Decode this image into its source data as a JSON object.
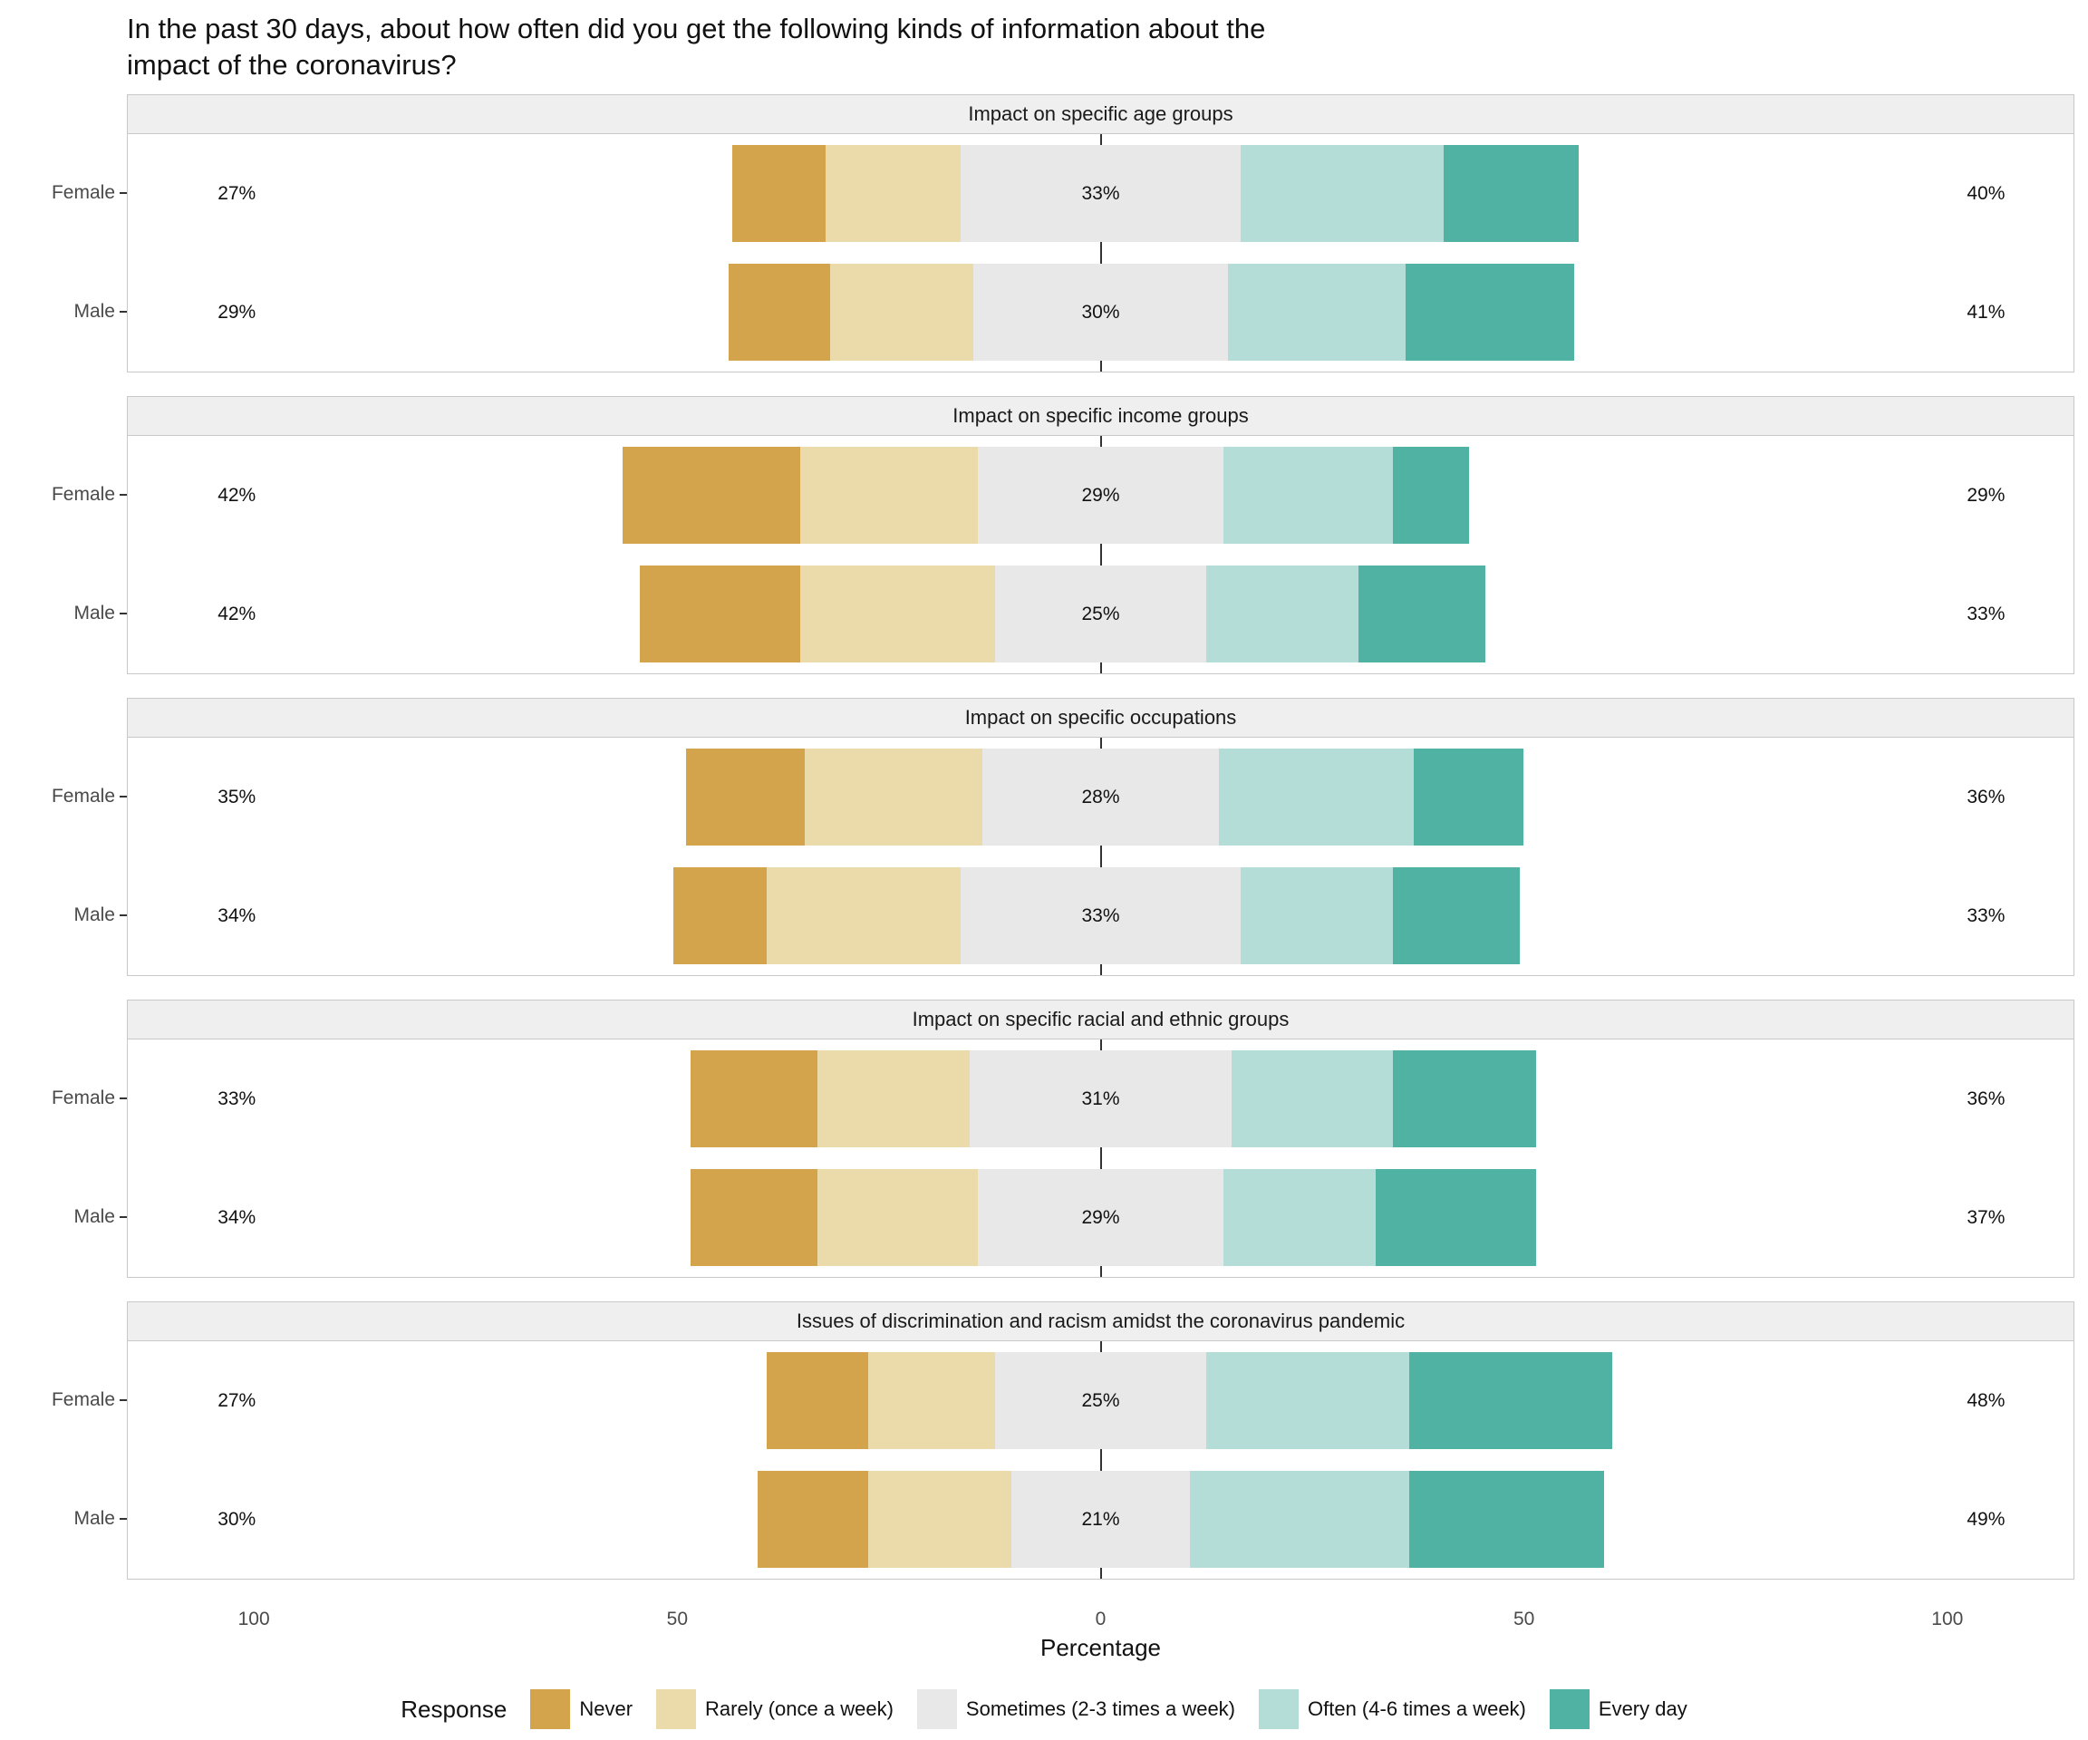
{
  "chart_data": {
    "type": "bar",
    "variant": "diverging-stacked-likert",
    "title": "In the past 30 days, about how often did you get the following kinds of information about the\nimpact of the coronavirus?",
    "xlabel": "Percentage",
    "xlim": [
      -115,
      115
    ],
    "x_ticks": [
      -100,
      -50,
      0,
      50,
      100
    ],
    "x_tick_labels": [
      "100",
      "50",
      "0",
      "50",
      "100"
    ],
    "legend_title": "Response",
    "legend_position": "bottom",
    "grid": false,
    "categories": [
      {
        "key": "never",
        "label": "Never",
        "color": "#d4a44c"
      },
      {
        "key": "rarely",
        "label": "Rarely (once a week)",
        "color": "#ecdbaa"
      },
      {
        "key": "sometimes",
        "label": "Sometimes (2-3 times a week)",
        "color": "#e8e8e8"
      },
      {
        "key": "often",
        "label": "Often (4-6 times a week)",
        "color": "#b3ddd6"
      },
      {
        "key": "every_day",
        "label": "Every day",
        "color": "#4fb2a2"
      }
    ],
    "panels": [
      {
        "title": "Impact on specific age groups",
        "rows": [
          {
            "group": "Female",
            "left_label": "27%",
            "mid_label": "33%",
            "right_label": "40%",
            "segments": {
              "never": 11,
              "rarely": 16,
              "sometimes": 33,
              "often": 24,
              "every_day": 16
            }
          },
          {
            "group": "Male",
            "left_label": "29%",
            "mid_label": "30%",
            "right_label": "41%",
            "segments": {
              "never": 12,
              "rarely": 17,
              "sometimes": 30,
              "often": 21,
              "every_day": 20
            }
          }
        ]
      },
      {
        "title": "Impact on specific income groups",
        "rows": [
          {
            "group": "Female",
            "left_label": "42%",
            "mid_label": "29%",
            "right_label": "29%",
            "segments": {
              "never": 21,
              "rarely": 21,
              "sometimes": 29,
              "often": 20,
              "every_day": 9
            }
          },
          {
            "group": "Male",
            "left_label": "42%",
            "mid_label": "25%",
            "right_label": "33%",
            "segments": {
              "never": 19,
              "rarely": 23,
              "sometimes": 25,
              "often": 18,
              "every_day": 15
            }
          }
        ]
      },
      {
        "title": "Impact on specific occupations",
        "rows": [
          {
            "group": "Female",
            "left_label": "35%",
            "mid_label": "28%",
            "right_label": "36%",
            "segments": {
              "never": 14,
              "rarely": 21,
              "sometimes": 28,
              "often": 23,
              "every_day": 13
            }
          },
          {
            "group": "Male",
            "left_label": "34%",
            "mid_label": "33%",
            "right_label": "33%",
            "segments": {
              "never": 11,
              "rarely": 23,
              "sometimes": 33,
              "often": 18,
              "every_day": 15
            }
          }
        ]
      },
      {
        "title": "Impact on specific racial and ethnic groups",
        "rows": [
          {
            "group": "Female",
            "left_label": "33%",
            "mid_label": "31%",
            "right_label": "36%",
            "segments": {
              "never": 15,
              "rarely": 18,
              "sometimes": 31,
              "often": 19,
              "every_day": 17
            }
          },
          {
            "group": "Male",
            "left_label": "34%",
            "mid_label": "29%",
            "right_label": "37%",
            "segments": {
              "never": 15,
              "rarely": 19,
              "sometimes": 29,
              "often": 18,
              "every_day": 19
            }
          }
        ]
      },
      {
        "title": "Issues of discrimination and racism amidst the coronavirus pandemic",
        "rows": [
          {
            "group": "Female",
            "left_label": "27%",
            "mid_label": "25%",
            "right_label": "48%",
            "segments": {
              "never": 12,
              "rarely": 15,
              "sometimes": 25,
              "often": 24,
              "every_day": 24
            }
          },
          {
            "group": "Male",
            "left_label": "30%",
            "mid_label": "21%",
            "right_label": "49%",
            "segments": {
              "never": 13,
              "rarely": 17,
              "sometimes": 21,
              "often": 26,
              "every_day": 23
            }
          }
        ]
      }
    ]
  }
}
